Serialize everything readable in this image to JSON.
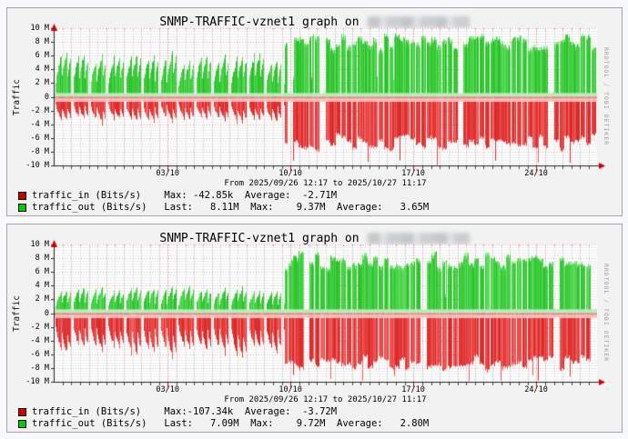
{
  "meta": {
    "watermark": "RRDTOOL / TOBI OETIKER"
  },
  "chart_data": [
    {
      "type": "area",
      "title": "SNMP-TRAFFIC-vznet1 graph on",
      "hostname_redacted": true,
      "ylabel": "Traffic",
      "y_unit": "Bits/s",
      "ylim": [
        -10000000,
        10000000
      ],
      "y_tick_step": 2000000,
      "y_tick_labels": [
        "10 M",
        "8 M",
        "6 M",
        "4 M",
        "2 M",
        "0",
        "-2 M",
        "-4 M",
        "-6 M",
        "-8 M",
        "-10 M"
      ],
      "x_ticks": [
        {
          "label": "03/10",
          "day": 6.49
        },
        {
          "label": "10/10",
          "day": 13.49
        },
        {
          "label": "17/10",
          "day": 20.49
        },
        {
          "label": "24/10",
          "day": 27.49
        }
      ],
      "time_range_label": "From 2025/09/26 12:17 to 2025/10/27 11:17",
      "span_days": 30.96,
      "series": [
        {
          "name": "traffic_in (Bits/s)",
          "legend_color": "#cc0000",
          "direction": "down",
          "stats": {
            "max": "-42.85k",
            "average": "-2.71M"
          },
          "waveform": {
            "phase_change_day": 13.15,
            "phase_a_peak_M": 3.8,
            "phase_b_base_M": 6.6,
            "phase_b_var_M": 1.2,
            "phase_b_spike_M": 10.0,
            "max_M": 10.0
          }
        },
        {
          "name": "traffic_out (Bits/s)",
          "legend_color": "#00cc00",
          "direction": "up",
          "stats": {
            "last": "8.11M",
            "max": "9.37M",
            "average": "3.65M"
          },
          "waveform": {
            "phase_change_day": 13.15,
            "phase_a_peak_M": 6.3,
            "phase_b_base_M": 7.9,
            "phase_b_var_M": 1.1,
            "max_M": 9.37
          }
        }
      ],
      "legend_rows": [
        {
          "series": "traffic_in",
          "text": "traffic_in (Bits/s)    Max: -42.85k  Average:  -2.71M"
        },
        {
          "series": "traffic_out",
          "text": "traffic_out (Bits/s)   Last:   8.11M  Max:    9.37M  Average:   3.65M"
        }
      ]
    },
    {
      "type": "area",
      "title": "SNMP-TRAFFIC-vznet1 graph on",
      "hostname_redacted": true,
      "ylabel": "Traffic",
      "y_unit": "Bits/s",
      "ylim": [
        -10000000,
        10000000
      ],
      "y_tick_step": 2000000,
      "y_tick_labels": [
        "10 M",
        "8 M",
        "6 M",
        "4 M",
        "2 M",
        "0",
        "-2 M",
        "-4 M",
        "-6 M",
        "-8 M",
        "-10 M"
      ],
      "x_ticks": [
        {
          "label": "03/10",
          "day": 6.49
        },
        {
          "label": "10/10",
          "day": 13.49
        },
        {
          "label": "17/10",
          "day": 20.49
        },
        {
          "label": "24/10",
          "day": 27.49
        }
      ],
      "time_range_label": "From 2025/09/26 12:17 to 2025/10/27 11:17",
      "span_days": 30.96,
      "series": [
        {
          "name": "traffic_in (Bits/s)",
          "legend_color": "#cc0000",
          "direction": "down",
          "stats": {
            "max": "-107.34k",
            "average": "-3.72M"
          },
          "waveform": {
            "phase_change_day": 13.15,
            "phase_a_peak_M": 6.0,
            "phase_b_base_M": 7.3,
            "phase_b_var_M": 1.1,
            "phase_b_spike_M": 10.0,
            "max_M": 10.0
          }
        },
        {
          "name": "traffic_out (Bits/s)",
          "legend_color": "#00cc00",
          "direction": "up",
          "stats": {
            "last": "7.09M",
            "max": "9.72M",
            "average": "2.80M"
          },
          "waveform": {
            "phase_change_day": 13.15,
            "phase_a_peak_M": 3.9,
            "phase_b_base_M": 7.6,
            "phase_b_var_M": 1.1,
            "max_M": 9.72
          }
        }
      ],
      "legend_rows": [
        {
          "series": "traffic_in",
          "text": "traffic_in (Bits/s)    Max:-107.34k  Average:  -3.72M"
        },
        {
          "series": "traffic_out",
          "text": "traffic_out (Bits/s)   Last:   7.09M  Max:    9.72M  Average:   2.80M"
        }
      ]
    }
  ]
}
